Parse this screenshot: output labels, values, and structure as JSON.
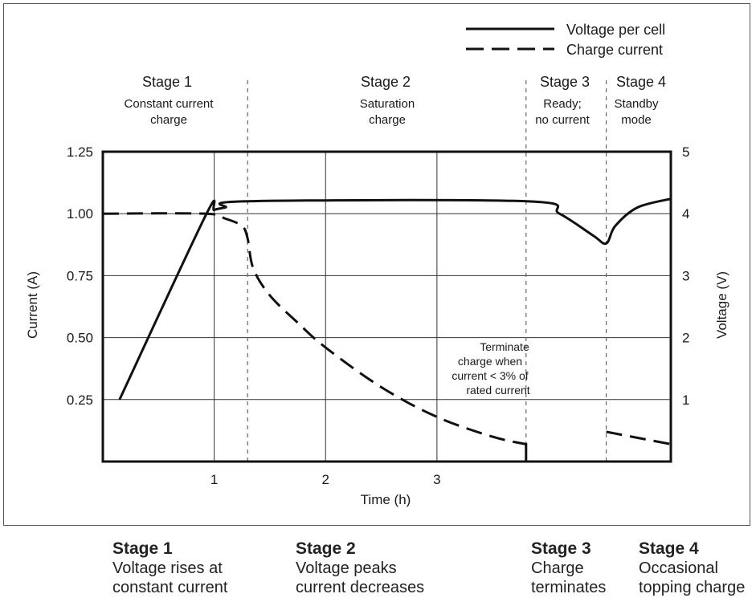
{
  "chart_data": {
    "type": "line",
    "xlabel": "Time (h)",
    "ylabel_left": "Current (A)",
    "ylabel_right": "Voltage (V)",
    "xlim": [
      0,
      5.1
    ],
    "ylim_left": [
      0,
      1.25
    ],
    "ylim_right": [
      0,
      5
    ],
    "x_ticks": [
      1,
      2,
      3
    ],
    "y_ticks_left": [
      "0.25",
      "0.50",
      "0.75",
      "1.00",
      "1.25"
    ],
    "y_ticks_right": [
      "1",
      "2",
      "3",
      "4",
      "5"
    ],
    "grid": true,
    "legend_position": "top-right",
    "series": [
      {
        "name": "Voltage per cell",
        "style": "solid",
        "axis": "right",
        "points": [
          [
            0.15,
            1.0
          ],
          [
            0.92,
            3.96
          ],
          [
            1.0,
            4.06
          ],
          [
            1.1,
            4.1
          ],
          [
            1.3,
            4.2
          ],
          [
            3.8,
            4.2
          ],
          [
            4.1,
            4.0
          ],
          [
            4.4,
            3.65
          ],
          [
            4.52,
            3.52
          ],
          [
            4.6,
            3.8
          ],
          [
            4.8,
            4.1
          ],
          [
            5.1,
            4.24
          ]
        ]
      },
      {
        "name": "Charge current",
        "style": "dashed",
        "axis": "left",
        "points": [
          [
            0.0,
            1.0
          ],
          [
            0.92,
            1.0
          ],
          [
            1.1,
            0.98
          ],
          [
            1.25,
            0.95
          ],
          [
            1.3,
            0.9
          ],
          [
            1.35,
            0.78
          ],
          [
            1.5,
            0.67
          ],
          [
            1.75,
            0.56
          ],
          [
            2.0,
            0.46
          ],
          [
            2.5,
            0.3
          ],
          [
            3.0,
            0.18
          ],
          [
            3.5,
            0.1
          ],
          [
            3.8,
            0.07
          ]
        ]
      },
      {
        "name": "Charge current",
        "style": "dashed",
        "axis": "left",
        "points": [
          [
            4.52,
            0.12
          ],
          [
            5.1,
            0.07
          ]
        ]
      }
    ],
    "stage_dividers": [
      1.3,
      3.8,
      4.52
    ],
    "terminate_mark_x": 3.8,
    "stages": [
      {
        "title": "Stage 1",
        "line1": "Constant current",
        "line2": "charge"
      },
      {
        "title": "Stage 2",
        "line1": "Saturation",
        "line2": "charge"
      },
      {
        "title": "Stage 3",
        "line1": "Ready;",
        "line2": "no current"
      },
      {
        "title": "Stage 4",
        "line1": "Standby",
        "line2": "mode"
      }
    ],
    "annotation": [
      "Terminate",
      "charge when",
      "current < 3% of",
      "rated current"
    ]
  },
  "captions": [
    {
      "title": "Stage 1",
      "line1": "Voltage rises at",
      "line2": "constant current"
    },
    {
      "title": "Stage 2",
      "line1": "Voltage peaks",
      "line2": "current decreases"
    },
    {
      "title": "Stage 3",
      "line1": "Charge",
      "line2": "terminates"
    },
    {
      "title": "Stage 4",
      "line1": "Occasional",
      "line2": "topping charge"
    }
  ]
}
